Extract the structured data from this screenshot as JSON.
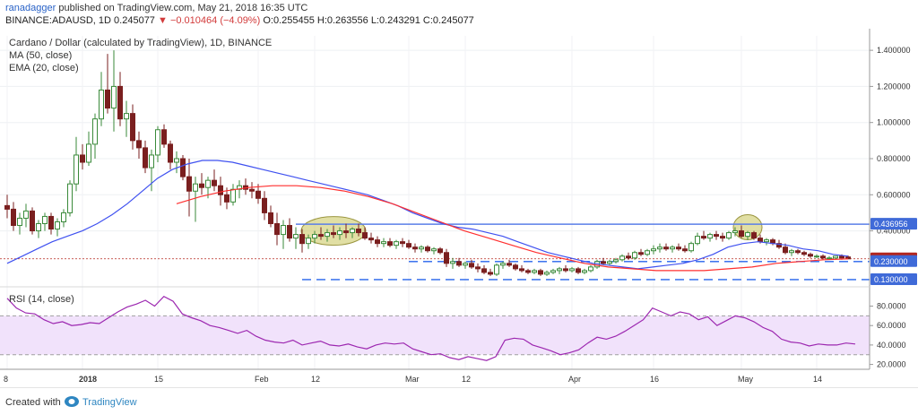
{
  "header": {
    "username": "ranadagger",
    "published": "published on TradingView.com, May 21, 2018 16:35 UTC",
    "symbol": "BINANCE:ADAUSD, 1D",
    "last": "0.245077",
    "arrow": "▼",
    "change": "−0.010464 (−4.09%)",
    "ohlc": "O:0.255455 H:0.263556 L:0.243291 C:0.245077"
  },
  "legend": {
    "title": "Cardano / Dollar (calculated by TradingView), 1D, BINANCE",
    "ma": "MA (50, close)",
    "ema": "EMA (20, close)",
    "rsi": "RSI (14, close)"
  },
  "footer": {
    "created": "Created with",
    "brand": "TradingView"
  },
  "colors": {
    "up": "#3a8a3a",
    "down": "#7a1f1f",
    "ema": "#3f51f0",
    "ma": "#ff2f2f",
    "resistance": "#5b7fe8",
    "support": "#2563eb",
    "rsi_line": "#9c27b0",
    "rsi_band": "#f1e2fb",
    "ellipse_fill": "#c9c45a",
    "price_label": "#b3261e",
    "level_label": "#3f6ad8"
  },
  "chart_data": {
    "type": "candlestick",
    "title": "Cardano / Dollar (calculated by TradingView), 1D, BINANCE",
    "x_ticks": [
      "8",
      "2018",
      "15",
      "Feb",
      "12",
      "Mar",
      "12",
      "Apr",
      "16",
      "May",
      "14"
    ],
    "price_axis": {
      "ticks": [
        "1.400000",
        "1.200000",
        "1.000000",
        "0.800000",
        "0.600000",
        "0.400000"
      ],
      "tick_values": [
        1.4,
        1.2,
        1.0,
        0.8,
        0.6,
        0.4
      ],
      "range": [
        0.1,
        1.48
      ]
    },
    "price_labels": [
      {
        "text": "0.436956",
        "value": 0.436956,
        "style": "level"
      },
      {
        "text": "0.245077",
        "value": 0.245077,
        "style": "price"
      },
      {
        "text": "0.230000",
        "value": 0.23,
        "style": "level"
      },
      {
        "text": "0.130000",
        "value": 0.13,
        "style": "level"
      }
    ],
    "levels": [
      {
        "name": "resistance",
        "value": 0.436956,
        "x_start_bar": 46,
        "style": "solid"
      },
      {
        "name": "support-upper",
        "value": 0.23,
        "x_start_bar": 64,
        "style": "dashed"
      },
      {
        "name": "support-lower",
        "value": 0.13,
        "x_start_bar": 47,
        "style": "dashed"
      }
    ],
    "highlights": [
      {
        "center_bar": 52,
        "value": 0.4
      },
      {
        "center_bar": 118,
        "value": 0.42
      }
    ],
    "rsi_axis": {
      "ticks": [
        "80.0000",
        "60.0000",
        "40.0000",
        "20.0000"
      ],
      "tick_values": [
        80,
        60,
        40,
        20
      ],
      "range": [
        15,
        98
      ],
      "band": [
        30,
        70
      ]
    },
    "candles": [
      {
        "o": 0.54,
        "h": 0.6,
        "l": 0.47,
        "c": 0.52
      },
      {
        "o": 0.52,
        "h": 0.56,
        "l": 0.4,
        "c": 0.43
      },
      {
        "o": 0.43,
        "h": 0.5,
        "l": 0.38,
        "c": 0.47
      },
      {
        "o": 0.47,
        "h": 0.55,
        "l": 0.42,
        "c": 0.51
      },
      {
        "o": 0.51,
        "h": 0.53,
        "l": 0.38,
        "c": 0.4
      },
      {
        "o": 0.4,
        "h": 0.46,
        "l": 0.36,
        "c": 0.44
      },
      {
        "o": 0.44,
        "h": 0.5,
        "l": 0.4,
        "c": 0.48
      },
      {
        "o": 0.48,
        "h": 0.5,
        "l": 0.38,
        "c": 0.41
      },
      {
        "o": 0.41,
        "h": 0.47,
        "l": 0.37,
        "c": 0.45
      },
      {
        "o": 0.45,
        "h": 0.52,
        "l": 0.42,
        "c": 0.5
      },
      {
        "o": 0.5,
        "h": 0.68,
        "l": 0.48,
        "c": 0.66
      },
      {
        "o": 0.66,
        "h": 0.92,
        "l": 0.62,
        "c": 0.82
      },
      {
        "o": 0.82,
        "h": 0.88,
        "l": 0.74,
        "c": 0.78
      },
      {
        "o": 0.78,
        "h": 0.95,
        "l": 0.76,
        "c": 0.88
      },
      {
        "o": 0.88,
        "h": 1.05,
        "l": 0.8,
        "c": 1.02
      },
      {
        "o": 1.02,
        "h": 1.28,
        "l": 0.98,
        "c": 1.18
      },
      {
        "o": 1.18,
        "h": 1.38,
        "l": 1.05,
        "c": 1.08
      },
      {
        "o": 1.08,
        "h": 1.4,
        "l": 0.95,
        "c": 1.2
      },
      {
        "o": 1.2,
        "h": 1.28,
        "l": 0.98,
        "c": 1.02
      },
      {
        "o": 1.02,
        "h": 1.12,
        "l": 0.92,
        "c": 1.05
      },
      {
        "o": 1.05,
        "h": 1.1,
        "l": 0.85,
        "c": 0.9
      },
      {
        "o": 0.9,
        "h": 0.95,
        "l": 0.8,
        "c": 0.86
      },
      {
        "o": 0.86,
        "h": 0.9,
        "l": 0.72,
        "c": 0.75
      },
      {
        "o": 0.75,
        "h": 0.85,
        "l": 0.62,
        "c": 0.82
      },
      {
        "o": 0.82,
        "h": 0.98,
        "l": 0.78,
        "c": 0.96
      },
      {
        "o": 0.96,
        "h": 0.99,
        "l": 0.86,
        "c": 0.88
      },
      {
        "o": 0.88,
        "h": 0.9,
        "l": 0.74,
        "c": 0.78
      },
      {
        "o": 0.78,
        "h": 0.84,
        "l": 0.72,
        "c": 0.8
      },
      {
        "o": 0.8,
        "h": 0.82,
        "l": 0.68,
        "c": 0.7
      },
      {
        "o": 0.7,
        "h": 0.8,
        "l": 0.48,
        "c": 0.62
      },
      {
        "o": 0.62,
        "h": 0.7,
        "l": 0.45,
        "c": 0.66
      },
      {
        "o": 0.66,
        "h": 0.72,
        "l": 0.6,
        "c": 0.64
      },
      {
        "o": 0.64,
        "h": 0.7,
        "l": 0.58,
        "c": 0.68
      },
      {
        "o": 0.68,
        "h": 0.74,
        "l": 0.62,
        "c": 0.65
      },
      {
        "o": 0.65,
        "h": 0.7,
        "l": 0.54,
        "c": 0.6
      },
      {
        "o": 0.6,
        "h": 0.64,
        "l": 0.52,
        "c": 0.56
      },
      {
        "o": 0.56,
        "h": 0.66,
        "l": 0.54,
        "c": 0.63
      },
      {
        "o": 0.63,
        "h": 0.68,
        "l": 0.58,
        "c": 0.65
      },
      {
        "o": 0.65,
        "h": 0.69,
        "l": 0.6,
        "c": 0.63
      },
      {
        "o": 0.63,
        "h": 0.67,
        "l": 0.58,
        "c": 0.62
      },
      {
        "o": 0.62,
        "h": 0.66,
        "l": 0.55,
        "c": 0.58
      },
      {
        "o": 0.58,
        "h": 0.62,
        "l": 0.46,
        "c": 0.5
      },
      {
        "o": 0.5,
        "h": 0.54,
        "l": 0.42,
        "c": 0.44
      },
      {
        "o": 0.44,
        "h": 0.5,
        "l": 0.32,
        "c": 0.38
      },
      {
        "o": 0.38,
        "h": 0.46,
        "l": 0.3,
        "c": 0.43
      },
      {
        "o": 0.43,
        "h": 0.47,
        "l": 0.34,
        "c": 0.36
      },
      {
        "o": 0.36,
        "h": 0.42,
        "l": 0.3,
        "c": 0.38
      },
      {
        "o": 0.38,
        "h": 0.41,
        "l": 0.28,
        "c": 0.33
      },
      {
        "o": 0.33,
        "h": 0.38,
        "l": 0.3,
        "c": 0.36
      },
      {
        "o": 0.36,
        "h": 0.4,
        "l": 0.33,
        "c": 0.38
      },
      {
        "o": 0.38,
        "h": 0.42,
        "l": 0.35,
        "c": 0.37
      },
      {
        "o": 0.37,
        "h": 0.41,
        "l": 0.34,
        "c": 0.39
      },
      {
        "o": 0.39,
        "h": 0.43,
        "l": 0.36,
        "c": 0.38
      },
      {
        "o": 0.38,
        "h": 0.42,
        "l": 0.35,
        "c": 0.4
      },
      {
        "o": 0.4,
        "h": 0.44,
        "l": 0.36,
        "c": 0.39
      },
      {
        "o": 0.39,
        "h": 0.42,
        "l": 0.36,
        "c": 0.41
      },
      {
        "o": 0.41,
        "h": 0.44,
        "l": 0.37,
        "c": 0.39
      },
      {
        "o": 0.39,
        "h": 0.42,
        "l": 0.35,
        "c": 0.36
      },
      {
        "o": 0.36,
        "h": 0.39,
        "l": 0.33,
        "c": 0.35
      },
      {
        "o": 0.35,
        "h": 0.37,
        "l": 0.31,
        "c": 0.33
      },
      {
        "o": 0.33,
        "h": 0.36,
        "l": 0.31,
        "c": 0.34
      },
      {
        "o": 0.34,
        "h": 0.36,
        "l": 0.31,
        "c": 0.32
      },
      {
        "o": 0.32,
        "h": 0.35,
        "l": 0.3,
        "c": 0.34
      },
      {
        "o": 0.34,
        "h": 0.36,
        "l": 0.31,
        "c": 0.33
      },
      {
        "o": 0.33,
        "h": 0.35,
        "l": 0.3,
        "c": 0.31
      },
      {
        "o": 0.31,
        "h": 0.33,
        "l": 0.28,
        "c": 0.3
      },
      {
        "o": 0.3,
        "h": 0.32,
        "l": 0.28,
        "c": 0.31
      },
      {
        "o": 0.31,
        "h": 0.32,
        "l": 0.28,
        "c": 0.29
      },
      {
        "o": 0.29,
        "h": 0.31,
        "l": 0.27,
        "c": 0.3
      },
      {
        "o": 0.3,
        "h": 0.31,
        "l": 0.27,
        "c": 0.28
      },
      {
        "o": 0.28,
        "h": 0.3,
        "l": 0.2,
        "c": 0.22
      },
      {
        "o": 0.22,
        "h": 0.25,
        "l": 0.19,
        "c": 0.23
      },
      {
        "o": 0.23,
        "h": 0.25,
        "l": 0.2,
        "c": 0.21
      },
      {
        "o": 0.21,
        "h": 0.23,
        "l": 0.19,
        "c": 0.22
      },
      {
        "o": 0.22,
        "h": 0.24,
        "l": 0.19,
        "c": 0.2
      },
      {
        "o": 0.2,
        "h": 0.22,
        "l": 0.17,
        "c": 0.19
      },
      {
        "o": 0.19,
        "h": 0.21,
        "l": 0.16,
        "c": 0.17
      },
      {
        "o": 0.17,
        "h": 0.19,
        "l": 0.15,
        "c": 0.16
      },
      {
        "o": 0.16,
        "h": 0.22,
        "l": 0.15,
        "c": 0.21
      },
      {
        "o": 0.21,
        "h": 0.23,
        "l": 0.19,
        "c": 0.22
      },
      {
        "o": 0.22,
        "h": 0.24,
        "l": 0.2,
        "c": 0.21
      },
      {
        "o": 0.21,
        "h": 0.22,
        "l": 0.18,
        "c": 0.19
      },
      {
        "o": 0.19,
        "h": 0.21,
        "l": 0.17,
        "c": 0.18
      },
      {
        "o": 0.18,
        "h": 0.19,
        "l": 0.16,
        "c": 0.17
      },
      {
        "o": 0.17,
        "h": 0.19,
        "l": 0.16,
        "c": 0.18
      },
      {
        "o": 0.18,
        "h": 0.19,
        "l": 0.15,
        "c": 0.16
      },
      {
        "o": 0.16,
        "h": 0.18,
        "l": 0.15,
        "c": 0.17
      },
      {
        "o": 0.17,
        "h": 0.19,
        "l": 0.16,
        "c": 0.18
      },
      {
        "o": 0.18,
        "h": 0.2,
        "l": 0.16,
        "c": 0.19
      },
      {
        "o": 0.19,
        "h": 0.21,
        "l": 0.17,
        "c": 0.18
      },
      {
        "o": 0.18,
        "h": 0.2,
        "l": 0.17,
        "c": 0.19
      },
      {
        "o": 0.19,
        "h": 0.2,
        "l": 0.16,
        "c": 0.17
      },
      {
        "o": 0.17,
        "h": 0.19,
        "l": 0.16,
        "c": 0.18
      },
      {
        "o": 0.18,
        "h": 0.21,
        "l": 0.17,
        "c": 0.2
      },
      {
        "o": 0.2,
        "h": 0.24,
        "l": 0.19,
        "c": 0.23
      },
      {
        "o": 0.23,
        "h": 0.25,
        "l": 0.21,
        "c": 0.22
      },
      {
        "o": 0.22,
        "h": 0.24,
        "l": 0.21,
        "c": 0.23
      },
      {
        "o": 0.23,
        "h": 0.25,
        "l": 0.22,
        "c": 0.24
      },
      {
        "o": 0.24,
        "h": 0.27,
        "l": 0.23,
        "c": 0.26
      },
      {
        "o": 0.26,
        "h": 0.28,
        "l": 0.24,
        "c": 0.25
      },
      {
        "o": 0.25,
        "h": 0.29,
        "l": 0.24,
        "c": 0.28
      },
      {
        "o": 0.28,
        "h": 0.3,
        "l": 0.26,
        "c": 0.27
      },
      {
        "o": 0.27,
        "h": 0.3,
        "l": 0.26,
        "c": 0.29
      },
      {
        "o": 0.29,
        "h": 0.32,
        "l": 0.27,
        "c": 0.3
      },
      {
        "o": 0.3,
        "h": 0.33,
        "l": 0.28,
        "c": 0.31
      },
      {
        "o": 0.31,
        "h": 0.33,
        "l": 0.29,
        "c": 0.3
      },
      {
        "o": 0.3,
        "h": 0.32,
        "l": 0.28,
        "c": 0.31
      },
      {
        "o": 0.31,
        "h": 0.33,
        "l": 0.29,
        "c": 0.3
      },
      {
        "o": 0.3,
        "h": 0.32,
        "l": 0.28,
        "c": 0.29
      },
      {
        "o": 0.29,
        "h": 0.34,
        "l": 0.28,
        "c": 0.33
      },
      {
        "o": 0.33,
        "h": 0.39,
        "l": 0.32,
        "c": 0.37
      },
      {
        "o": 0.37,
        "h": 0.4,
        "l": 0.35,
        "c": 0.36
      },
      {
        "o": 0.36,
        "h": 0.39,
        "l": 0.34,
        "c": 0.38
      },
      {
        "o": 0.38,
        "h": 0.4,
        "l": 0.35,
        "c": 0.37
      },
      {
        "o": 0.37,
        "h": 0.39,
        "l": 0.34,
        "c": 0.36
      },
      {
        "o": 0.36,
        "h": 0.4,
        "l": 0.35,
        "c": 0.39
      },
      {
        "o": 0.39,
        "h": 0.42,
        "l": 0.37,
        "c": 0.4
      },
      {
        "o": 0.4,
        "h": 0.43,
        "l": 0.36,
        "c": 0.37
      },
      {
        "o": 0.37,
        "h": 0.4,
        "l": 0.35,
        "c": 0.39
      },
      {
        "o": 0.39,
        "h": 0.4,
        "l": 0.35,
        "c": 0.36
      },
      {
        "o": 0.36,
        "h": 0.38,
        "l": 0.33,
        "c": 0.34
      },
      {
        "o": 0.34,
        "h": 0.36,
        "l": 0.32,
        "c": 0.35
      },
      {
        "o": 0.35,
        "h": 0.36,
        "l": 0.32,
        "c": 0.33
      },
      {
        "o": 0.33,
        "h": 0.35,
        "l": 0.3,
        "c": 0.31
      },
      {
        "o": 0.31,
        "h": 0.33,
        "l": 0.27,
        "c": 0.28
      },
      {
        "o": 0.28,
        "h": 0.3,
        "l": 0.26,
        "c": 0.29
      },
      {
        "o": 0.29,
        "h": 0.3,
        "l": 0.27,
        "c": 0.28
      },
      {
        "o": 0.28,
        "h": 0.29,
        "l": 0.26,
        "c": 0.27
      },
      {
        "o": 0.27,
        "h": 0.28,
        "l": 0.25,
        "c": 0.26
      },
      {
        "o": 0.26,
        "h": 0.27,
        "l": 0.25,
        "c": 0.26
      },
      {
        "o": 0.26,
        "h": 0.27,
        "l": 0.24,
        "c": 0.25
      },
      {
        "o": 0.25,
        "h": 0.26,
        "l": 0.24,
        "c": 0.25
      },
      {
        "o": 0.25,
        "h": 0.26,
        "l": 0.24,
        "c": 0.26
      },
      {
        "o": 0.26,
        "h": 0.27,
        "l": 0.24,
        "c": 0.25
      },
      {
        "o": 0.255455,
        "h": 0.263556,
        "l": 0.243291,
        "c": 0.245077
      }
    ],
    "ema20": [
      0.22,
      0.26,
      0.3,
      0.34,
      0.37,
      0.4,
      0.44,
      0.49,
      0.55,
      0.62,
      0.69,
      0.74,
      0.77,
      0.79,
      0.79,
      0.78,
      0.76,
      0.74,
      0.72,
      0.7,
      0.68,
      0.66,
      0.64,
      0.62,
      0.6,
      0.57,
      0.54,
      0.5,
      0.47,
      0.44,
      0.42,
      0.41,
      0.39,
      0.37,
      0.34,
      0.31,
      0.28,
      0.26,
      0.24,
      0.22,
      0.21,
      0.2,
      0.19,
      0.2,
      0.21,
      0.22,
      0.24,
      0.27,
      0.31,
      0.33,
      0.34,
      0.33,
      0.32,
      0.3,
      0.29,
      0.27,
      0.26
    ],
    "ma50": [
      0.55,
      0.59,
      0.62,
      0.64,
      0.65,
      0.65,
      0.64,
      0.62,
      0.59,
      0.55,
      0.5,
      0.45,
      0.4,
      0.36,
      0.32,
      0.28,
      0.25,
      0.22,
      0.2,
      0.19,
      0.18,
      0.18,
      0.18,
      0.19,
      0.2,
      0.22,
      0.23,
      0.24,
      0.245
    ],
    "rsi": [
      88,
      78,
      73,
      72,
      66,
      62,
      64,
      60,
      61,
      63,
      62,
      68,
      74,
      79,
      82,
      86,
      80,
      90,
      85,
      72,
      68,
      65,
      60,
      58,
      55,
      52,
      55,
      49,
      45,
      43,
      42,
      45,
      40,
      42,
      44,
      40,
      39,
      41,
      38,
      36,
      40,
      42,
      41,
      42,
      36,
      33,
      30,
      31,
      27,
      25,
      28,
      26,
      24,
      28,
      45,
      47,
      46,
      40,
      37,
      34,
      30,
      32,
      35,
      42,
      48,
      46,
      49,
      54,
      60,
      66,
      78,
      74,
      70,
      74,
      72,
      66,
      69,
      60,
      65,
      70,
      68,
      64,
      58,
      54,
      46,
      43,
      42,
      39,
      41,
      40,
      40,
      42,
      41
    ]
  }
}
